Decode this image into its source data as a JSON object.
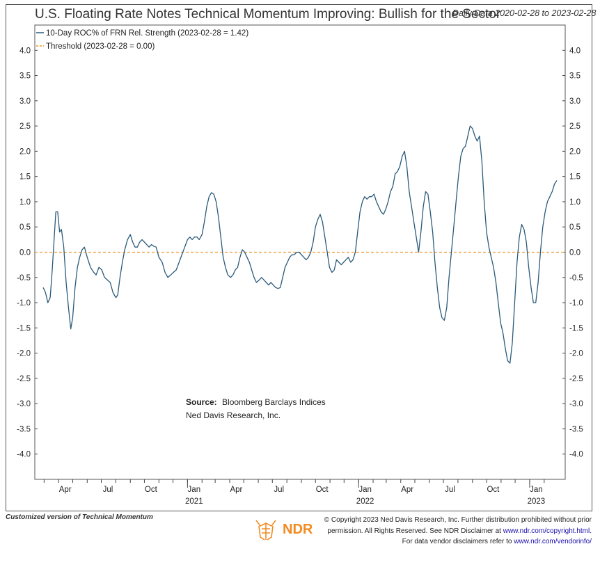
{
  "header": {
    "title": "U.S. Floating Rate Notes Technical Momentum Improving: Bullish for the Sector",
    "date_range": "Daily Data 2020-02-28 to 2023-02-28"
  },
  "legend": {
    "series_label": "10-Day ROC% of FRN Rel. Strength (2023-02-28 = 1.42)",
    "threshold_label": "Threshold (2023-02-28 = 0.00)"
  },
  "source": {
    "label": "Source:",
    "text": "Bloomberg Barclays Indices",
    "org": "Ned Davis Research, Inc."
  },
  "footer": {
    "left_note": "Customized version of Technical Momentum",
    "logo_text": "NDR",
    "copyright_line1": "© Copyright 2023 Ned Davis Research, Inc. Further distribution prohibited without prior",
    "copyright_line2_prefix": "permission. All Rights Reserved. See NDR Disclaimer at",
    "copyright_link1": "www.ndr.com/copyright.html.",
    "copyright_line3_prefix": "For data vendor disclaimers refer to",
    "copyright_link2": "www.ndr.com/vendorinfo/"
  },
  "colors": {
    "series": "#2a5a7a",
    "threshold": "#e8972f",
    "logo": "#f28b22"
  },
  "chart_data": {
    "type": "line",
    "title": "U.S. Floating Rate Notes Technical Momentum Improving: Bullish for the Sector",
    "xlabel": "",
    "ylabel": "",
    "ylim": [
      -4.5,
      4.5
    ],
    "y_ticks": [
      "4.0",
      "3.5",
      "3.0",
      "2.5",
      "2.0",
      "1.5",
      "1.0",
      "0.5",
      "0.0",
      "-0.5",
      "-1.0",
      "-1.5",
      "-2.0",
      "-2.5",
      "-3.0",
      "-3.5",
      "-4.0"
    ],
    "x_range": [
      "2020-02-28",
      "2023-02-28"
    ],
    "x_month_ticks": [
      {
        "date": "2020-04-01",
        "label": "Apr"
      },
      {
        "date": "2020-07-01",
        "label": "Jul"
      },
      {
        "date": "2020-10-01",
        "label": "Oct"
      },
      {
        "date": "2021-01-01",
        "label": "Jan"
      },
      {
        "date": "2021-04-01",
        "label": "Apr"
      },
      {
        "date": "2021-07-01",
        "label": "Jul"
      },
      {
        "date": "2021-10-01",
        "label": "Oct"
      },
      {
        "date": "2022-01-01",
        "label": "Jan"
      },
      {
        "date": "2022-04-01",
        "label": "Apr"
      },
      {
        "date": "2022-07-01",
        "label": "Jul"
      },
      {
        "date": "2022-10-01",
        "label": "Oct"
      },
      {
        "date": "2023-01-01",
        "label": "Jan"
      }
    ],
    "x_year_labels": [
      {
        "date": "2021-01-01",
        "label": "2021"
      },
      {
        "date": "2022-01-01",
        "label": "2022"
      },
      {
        "date": "2023-01-01",
        "label": "2023"
      }
    ],
    "threshold": 0.0,
    "series": [
      {
        "name": "10-Day ROC% of FRN Rel. Strength",
        "points": [
          [
            "2020-02-28",
            -0.7
          ],
          [
            "2020-03-04",
            -0.8
          ],
          [
            "2020-03-09",
            -1.0
          ],
          [
            "2020-03-14",
            -0.9
          ],
          [
            "2020-03-18",
            -0.4
          ],
          [
            "2020-03-22",
            0.2
          ],
          [
            "2020-03-26",
            0.8
          ],
          [
            "2020-03-30",
            0.8
          ],
          [
            "2020-04-03",
            0.4
          ],
          [
            "2020-04-07",
            0.45
          ],
          [
            "2020-04-12",
            0.1
          ],
          [
            "2020-04-17",
            -0.6
          ],
          [
            "2020-04-22",
            -1.1
          ],
          [
            "2020-04-27",
            -1.52
          ],
          [
            "2020-05-01",
            -1.3
          ],
          [
            "2020-05-06",
            -0.7
          ],
          [
            "2020-05-11",
            -0.3
          ],
          [
            "2020-05-16",
            -0.1
          ],
          [
            "2020-05-21",
            0.05
          ],
          [
            "2020-05-26",
            0.1
          ],
          [
            "2020-06-01",
            -0.1
          ],
          [
            "2020-06-08",
            -0.3
          ],
          [
            "2020-06-15",
            -0.4
          ],
          [
            "2020-06-20",
            -0.45
          ],
          [
            "2020-06-26",
            -0.3
          ],
          [
            "2020-07-02",
            -0.35
          ],
          [
            "2020-07-08",
            -0.5
          ],
          [
            "2020-07-14",
            -0.55
          ],
          [
            "2020-07-20",
            -0.6
          ],
          [
            "2020-07-26",
            -0.8
          ],
          [
            "2020-08-01",
            -0.9
          ],
          [
            "2020-08-05",
            -0.85
          ],
          [
            "2020-08-10",
            -0.5
          ],
          [
            "2020-08-15",
            -0.2
          ],
          [
            "2020-08-20",
            0.05
          ],
          [
            "2020-08-26",
            0.25
          ],
          [
            "2020-09-01",
            0.35
          ],
          [
            "2020-09-06",
            0.2
          ],
          [
            "2020-09-11",
            0.1
          ],
          [
            "2020-09-16",
            0.1
          ],
          [
            "2020-09-21",
            0.2
          ],
          [
            "2020-09-26",
            0.25
          ],
          [
            "2020-10-01",
            0.2
          ],
          [
            "2020-10-06",
            0.15
          ],
          [
            "2020-10-11",
            0.1
          ],
          [
            "2020-10-16",
            0.15
          ],
          [
            "2020-10-21",
            0.12
          ],
          [
            "2020-10-26",
            0.1
          ],
          [
            "2020-11-01",
            -0.1
          ],
          [
            "2020-11-08",
            -0.2
          ],
          [
            "2020-11-14",
            -0.4
          ],
          [
            "2020-11-20",
            -0.5
          ],
          [
            "2020-11-26",
            -0.45
          ],
          [
            "2020-12-02",
            -0.4
          ],
          [
            "2020-12-08",
            -0.35
          ],
          [
            "2020-12-14",
            -0.2
          ],
          [
            "2020-12-20",
            -0.05
          ],
          [
            "2020-12-26",
            0.1
          ],
          [
            "2021-01-01",
            0.25
          ],
          [
            "2021-01-06",
            0.3
          ],
          [
            "2021-01-11",
            0.25
          ],
          [
            "2021-01-16",
            0.3
          ],
          [
            "2021-01-21",
            0.3
          ],
          [
            "2021-01-26",
            0.25
          ],
          [
            "2021-02-01",
            0.35
          ],
          [
            "2021-02-06",
            0.6
          ],
          [
            "2021-02-11",
            0.9
          ],
          [
            "2021-02-16",
            1.1
          ],
          [
            "2021-02-21",
            1.18
          ],
          [
            "2021-02-26",
            1.15
          ],
          [
            "2021-03-03",
            1.0
          ],
          [
            "2021-03-08",
            0.7
          ],
          [
            "2021-03-13",
            0.3
          ],
          [
            "2021-03-18",
            -0.1
          ],
          [
            "2021-03-23",
            -0.3
          ],
          [
            "2021-03-28",
            -0.45
          ],
          [
            "2021-04-03",
            -0.5
          ],
          [
            "2021-04-08",
            -0.45
          ],
          [
            "2021-04-13",
            -0.35
          ],
          [
            "2021-04-18",
            -0.3
          ],
          [
            "2021-04-23",
            -0.1
          ],
          [
            "2021-04-28",
            0.05
          ],
          [
            "2021-05-03",
            0.0
          ],
          [
            "2021-05-08",
            -0.1
          ],
          [
            "2021-05-13",
            -0.2
          ],
          [
            "2021-05-18",
            -0.35
          ],
          [
            "2021-05-23",
            -0.5
          ],
          [
            "2021-05-28",
            -0.6
          ],
          [
            "2021-06-03",
            -0.55
          ],
          [
            "2021-06-08",
            -0.5
          ],
          [
            "2021-06-13",
            -0.55
          ],
          [
            "2021-06-18",
            -0.6
          ],
          [
            "2021-06-23",
            -0.65
          ],
          [
            "2021-06-28",
            -0.6
          ],
          [
            "2021-07-03",
            -0.65
          ],
          [
            "2021-07-08",
            -0.7
          ],
          [
            "2021-07-13",
            -0.72
          ],
          [
            "2021-07-18",
            -0.7
          ],
          [
            "2021-07-23",
            -0.5
          ],
          [
            "2021-07-28",
            -0.3
          ],
          [
            "2021-08-02",
            -0.2
          ],
          [
            "2021-08-07",
            -0.1
          ],
          [
            "2021-08-12",
            -0.05
          ],
          [
            "2021-08-17",
            -0.05
          ],
          [
            "2021-08-22",
            0.0
          ],
          [
            "2021-08-27",
            0.0
          ],
          [
            "2021-09-01",
            -0.05
          ],
          [
            "2021-09-06",
            -0.1
          ],
          [
            "2021-09-11",
            -0.15
          ],
          [
            "2021-09-16",
            -0.1
          ],
          [
            "2021-09-21",
            0.0
          ],
          [
            "2021-09-26",
            0.2
          ],
          [
            "2021-10-01",
            0.5
          ],
          [
            "2021-10-06",
            0.65
          ],
          [
            "2021-10-11",
            0.75
          ],
          [
            "2021-10-16",
            0.6
          ],
          [
            "2021-10-21",
            0.3
          ],
          [
            "2021-10-26",
            0.0
          ],
          [
            "2021-10-31",
            -0.3
          ],
          [
            "2021-11-05",
            -0.4
          ],
          [
            "2021-11-10",
            -0.35
          ],
          [
            "2021-11-15",
            -0.15
          ],
          [
            "2021-11-20",
            -0.2
          ],
          [
            "2021-11-25",
            -0.25
          ],
          [
            "2021-11-30",
            -0.2
          ],
          [
            "2021-12-05",
            -0.15
          ],
          [
            "2021-12-10",
            -0.1
          ],
          [
            "2021-12-15",
            -0.2
          ],
          [
            "2021-12-20",
            -0.15
          ],
          [
            "2021-12-25",
            0.0
          ],
          [
            "2021-12-30",
            0.4
          ],
          [
            "2022-01-04",
            0.8
          ],
          [
            "2022-01-09",
            1.0
          ],
          [
            "2022-01-14",
            1.1
          ],
          [
            "2022-01-19",
            1.05
          ],
          [
            "2022-01-24",
            1.1
          ],
          [
            "2022-01-29",
            1.1
          ],
          [
            "2022-02-03",
            1.15
          ],
          [
            "2022-02-08",
            1.0
          ],
          [
            "2022-02-13",
            0.9
          ],
          [
            "2022-02-18",
            0.8
          ],
          [
            "2022-02-23",
            0.75
          ],
          [
            "2022-02-28",
            0.85
          ],
          [
            "2022-03-05",
            1.0
          ],
          [
            "2022-03-10",
            1.2
          ],
          [
            "2022-03-15",
            1.3
          ],
          [
            "2022-03-20",
            1.55
          ],
          [
            "2022-03-25",
            1.6
          ],
          [
            "2022-03-30",
            1.7
          ],
          [
            "2022-04-04",
            1.9
          ],
          [
            "2022-04-09",
            2.0
          ],
          [
            "2022-04-14",
            1.7
          ],
          [
            "2022-04-19",
            1.2
          ],
          [
            "2022-04-24",
            0.9
          ],
          [
            "2022-04-29",
            0.6
          ],
          [
            "2022-05-04",
            0.3
          ],
          [
            "2022-05-09",
            0.0
          ],
          [
            "2022-05-14",
            0.4
          ],
          [
            "2022-05-19",
            0.9
          ],
          [
            "2022-05-24",
            1.2
          ],
          [
            "2022-05-29",
            1.15
          ],
          [
            "2022-06-03",
            0.8
          ],
          [
            "2022-06-08",
            0.4
          ],
          [
            "2022-06-13",
            -0.2
          ],
          [
            "2022-06-18",
            -0.7
          ],
          [
            "2022-06-23",
            -1.1
          ],
          [
            "2022-06-28",
            -1.3
          ],
          [
            "2022-07-03",
            -1.35
          ],
          [
            "2022-07-08",
            -1.1
          ],
          [
            "2022-07-13",
            -0.5
          ],
          [
            "2022-07-18",
            0.0
          ],
          [
            "2022-07-23",
            0.5
          ],
          [
            "2022-07-28",
            1.0
          ],
          [
            "2022-08-02",
            1.5
          ],
          [
            "2022-08-07",
            1.9
          ],
          [
            "2022-08-12",
            2.05
          ],
          [
            "2022-08-17",
            2.1
          ],
          [
            "2022-08-22",
            2.3
          ],
          [
            "2022-08-27",
            2.5
          ],
          [
            "2022-09-01",
            2.45
          ],
          [
            "2022-09-06",
            2.3
          ],
          [
            "2022-09-11",
            2.2
          ],
          [
            "2022-09-16",
            2.3
          ],
          [
            "2022-09-21",
            1.8
          ],
          [
            "2022-09-26",
            1.0
          ],
          [
            "2022-10-01",
            0.4
          ],
          [
            "2022-10-06",
            0.1
          ],
          [
            "2022-10-11",
            -0.1
          ],
          [
            "2022-10-16",
            -0.3
          ],
          [
            "2022-10-21",
            -0.6
          ],
          [
            "2022-10-26",
            -1.0
          ],
          [
            "2022-10-31",
            -1.4
          ],
          [
            "2022-11-05",
            -1.6
          ],
          [
            "2022-11-10",
            -1.9
          ],
          [
            "2022-11-15",
            -2.15
          ],
          [
            "2022-11-20",
            -2.2
          ],
          [
            "2022-11-25",
            -1.8
          ],
          [
            "2022-11-30",
            -1.0
          ],
          [
            "2022-12-05",
            -0.2
          ],
          [
            "2022-12-10",
            0.3
          ],
          [
            "2022-12-15",
            0.55
          ],
          [
            "2022-12-20",
            0.45
          ],
          [
            "2022-12-25",
            0.2
          ],
          [
            "2022-12-30",
            -0.3
          ],
          [
            "2023-01-04",
            -0.7
          ],
          [
            "2023-01-09",
            -1.0
          ],
          [
            "2023-01-14",
            -1.0
          ],
          [
            "2023-01-19",
            -0.6
          ],
          [
            "2023-01-24",
            0.0
          ],
          [
            "2023-01-29",
            0.5
          ],
          [
            "2023-02-03",
            0.8
          ],
          [
            "2023-02-08",
            1.0
          ],
          [
            "2023-02-13",
            1.1
          ],
          [
            "2023-02-18",
            1.2
          ],
          [
            "2023-02-23",
            1.35
          ],
          [
            "2023-02-28",
            1.42
          ]
        ]
      }
    ]
  }
}
